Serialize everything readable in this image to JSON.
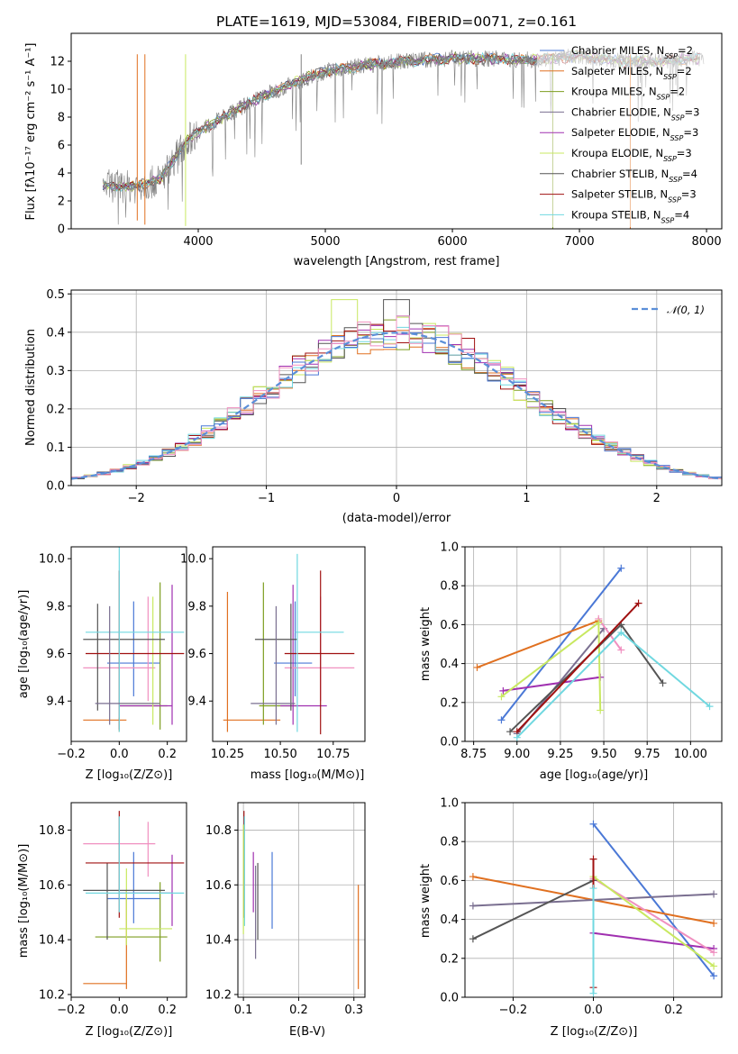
{
  "title": "PLATE=1619, MJD=53084, FIBERID=0071, z=0.161",
  "colors": [
    "#4a78d6",
    "#e07020",
    "#7e9e20",
    "#7a6f90",
    "#a030b0",
    "#c8e860",
    "#555555",
    "#a01010",
    "#70d8e0"
  ],
  "panels": {
    "spectrum": {
      "xlabel": "wavelength [Angstrom, rest frame]",
      "ylabel": "Flux [fλ10⁻¹⁷ erg cm⁻² s⁻¹ A⁻¹]",
      "xticks": [
        4000,
        5000,
        6000,
        7000,
        8000
      ],
      "yticks": [
        0,
        2,
        4,
        6,
        8,
        10,
        12
      ],
      "xlim": [
        3000,
        8120
      ],
      "ylim": [
        0,
        14
      ],
      "legend": [
        "Chabrier MILES, N_SSP=2",
        "Salpeter MILES, N_SSP=2",
        "Kroupa MILES, N_SSP=2",
        "Chabrier ELODIE, N_SSP=3",
        "Salpeter ELODIE, N_SSP=3",
        "Kroupa ELODIE, N_SSP=3",
        "Chabrier STELIB, N_SSP=4",
        "Salpeter STELIB, N_SSP=3",
        "Kroupa STELIB, N_SSP=4"
      ],
      "legend_location": "upper right"
    },
    "residuals": {
      "xlabel": "(data-model)/error",
      "ylabel": "Normed distribution",
      "xticks": [
        -2,
        -1,
        0,
        1,
        2
      ],
      "yticks": [
        0.0,
        0.1,
        0.2,
        0.3,
        0.4,
        0.5
      ],
      "xlim": [
        -2.5,
        2.5
      ],
      "ylim": [
        0,
        0.51
      ],
      "legend": "𝒩(0, 1)",
      "legend_location": "upper right"
    },
    "age_vs_Z": {
      "xlabel": "Z [log₁₀(Z/Z⊙)]",
      "ylabel": "age  [log₁₀(age/yr)]",
      "xticks": [
        "−0.2",
        "0.0",
        "0.2"
      ],
      "yticks": [
        "9.4",
        "9.6",
        "9.8",
        "10.0"
      ]
    },
    "age_vs_mass": {
      "xlabel": "mass [log₁₀(M/M⊙)]",
      "xticks": [
        "10.25",
        "10.50",
        "10.75"
      ],
      "yticks": [
        "9.4",
        "9.6",
        "9.8",
        "10.0"
      ]
    },
    "weight_vs_age": {
      "xlabel": "age  [log₁₀(age/yr)]",
      "ylabel": "mass weight",
      "xticks": [
        "8.75",
        "9.00",
        "9.25",
        "9.50",
        "9.75",
        "10.00"
      ],
      "yticks": [
        "0.0",
        "0.2",
        "0.4",
        "0.6",
        "0.8",
        "1.0"
      ]
    },
    "mass_vs_Z": {
      "xlabel": "Z [log₁₀(Z/Z⊙)]",
      "ylabel": "mass [log₁₀(M/M⊙)]",
      "xticks": [
        "−0.2",
        "0.0",
        "0.2"
      ],
      "yticks": [
        "10.2",
        "10.4",
        "10.6",
        "10.8"
      ]
    },
    "mass_vs_ebv": {
      "xlabel": "E(B-V)",
      "xticks": [
        "0.1",
        "0.2",
        "0.3"
      ],
      "yticks": [
        "10.2",
        "10.4",
        "10.6",
        "10.8"
      ]
    },
    "weight_vs_Z": {
      "xlabel": "Z [log₁₀(Z/Z⊙)]",
      "ylabel": "mass weight",
      "xticks": [
        "−0.2",
        "0.0",
        "0.2"
      ],
      "yticks": [
        "0.0",
        "0.2",
        "0.4",
        "0.6",
        "0.8",
        "1.0"
      ]
    }
  },
  "chart_data": [
    {
      "type": "line",
      "title": "PLATE=1619, MJD=53084, FIBERID=0071, z=0.161",
      "xlabel": "wavelength [Angstrom, rest frame]",
      "ylabel": "Flux [fλ10⁻¹⁷ erg cm⁻² s⁻¹ A⁻¹]",
      "xlim": [
        3000,
        8120
      ],
      "ylim": [
        0,
        14
      ],
      "x": [
        3250,
        3500,
        3700,
        3900,
        4000,
        4200,
        4500,
        4800,
        5000,
        5300,
        5600,
        6000,
        6300,
        6600,
        6800,
        7000,
        7300,
        7600,
        7900
      ],
      "series": [
        {
          "values": [
            3.1,
            3.0,
            3.5,
            6.2,
            7.0,
            8.0,
            9.5,
            10.6,
            11.3,
            11.7,
            12.0,
            12.2,
            12.2,
            12.1,
            12.2,
            12.4,
            12.0,
            12.0,
            12.2
          ]
        }
      ]
    },
    {
      "type": "line",
      "xlabel": "(data-model)/error",
      "ylabel": "Normed distribution",
      "xlim": [
        -2.5,
        2.5
      ],
      "ylim": [
        0,
        0.51
      ],
      "x": [
        -2.5,
        -2.0,
        -1.5,
        -1.0,
        -0.5,
        0.0,
        0.5,
        1.0,
        1.5,
        2.0,
        2.5
      ],
      "series": [
        {
          "name": "𝒩(0, 1)",
          "values": [
            0.018,
            0.054,
            0.13,
            0.242,
            0.352,
            0.399,
            0.352,
            0.242,
            0.13,
            0.054,
            0.018
          ]
        }
      ]
    },
    {
      "type": "line",
      "xlabel": "age  [log₁₀(age/yr)]",
      "ylabel": "mass weight",
      "xlim": [
        8.7,
        10.18
      ],
      "ylim": [
        0,
        1
      ],
      "series": [
        {
          "x": [
            8.91,
            9.6
          ],
          "values": [
            0.11,
            0.89
          ]
        },
        {
          "x": [
            8.77,
            9.47
          ],
          "values": [
            0.38,
            0.62
          ]
        },
        {
          "x": [
            9.0,
            9.5
          ],
          "values": [
            0.04,
            0.58
          ]
        },
        {
          "x": [
            8.92,
            9.48
          ],
          "values": [
            0.26,
            0.33
          ]
        },
        {
          "x": [
            9.47,
            9.6
          ],
          "values": [
            0.63,
            0.47
          ]
        },
        {
          "x": [
            8.91,
            9.47,
            9.48
          ],
          "values": [
            0.23,
            0.61,
            0.16
          ]
        },
        {
          "x": [
            8.96,
            9.6,
            9.84
          ],
          "values": [
            0.05,
            0.6,
            0.3
          ]
        },
        {
          "x": [
            9.0,
            9.7
          ],
          "values": [
            0.05,
            0.71
          ]
        },
        {
          "x": [
            9.0,
            9.6,
            10.11
          ],
          "values": [
            0.02,
            0.56,
            0.18
          ]
        }
      ]
    },
    {
      "type": "line",
      "xlabel": "Z [log₁₀(Z/Z⊙)]",
      "ylabel": "mass weight",
      "xlim": [
        -0.32,
        0.32
      ],
      "ylim": [
        0,
        1
      ],
      "series": [
        {
          "x": [
            0.0,
            0.3
          ],
          "values": [
            0.89,
            0.11
          ]
        },
        {
          "x": [
            -0.3,
            0.3
          ],
          "values": [
            0.62,
            0.38
          ]
        },
        {
          "x": [
            -0.3,
            0.3
          ],
          "values": [
            0.47,
            0.53
          ]
        },
        {
          "x": [
            0.0,
            0.3
          ],
          "values": [
            0.33,
            0.25
          ]
        },
        {
          "x": [
            0.0,
            0.3
          ],
          "values": [
            0.61,
            0.23
          ]
        },
        {
          "x": [
            0.0,
            0.3
          ],
          "values": [
            0.62,
            0.16
          ]
        },
        {
          "x": [
            -0.3,
            0.0
          ],
          "values": [
            0.3,
            0.6
          ]
        },
        {
          "x": [
            0.0,
            0.0
          ],
          "values": [
            0.05,
            0.71
          ]
        },
        {
          "x": [
            0.0,
            0.0
          ],
          "values": [
            0.02,
            0.56
          ]
        }
      ]
    }
  ]
}
